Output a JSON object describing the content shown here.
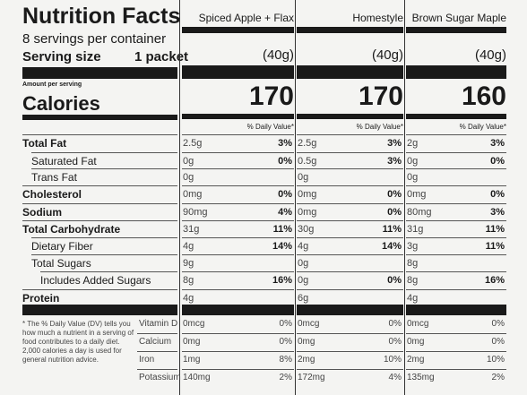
{
  "header": {
    "title": "Nutrition Facts",
    "servings": "8 servings per container",
    "serving_size_label": "Serving size",
    "serving_size": "1 packet",
    "amount_per_serving": "Amount per serving",
    "calories_label": "Calories",
    "dv_heading": "% Daily Value*"
  },
  "nutrients": [
    "Total Fat",
    "Saturated Fat",
    "Trans Fat",
    "Cholesterol",
    "Sodium",
    "Total Carbohydrate",
    "Dietary Fiber",
    "Total Sugars",
    "Includes Added Sugars",
    "Protein"
  ],
  "vitamins": [
    "Vitamin D",
    "Calcium",
    "Iron",
    "Potassium"
  ],
  "footnote": "* The % Daily Value (DV) tells you how much a nutrient in a serving of food contributes to a daily diet. 2,000 calories a day is used for general nutrition advice.",
  "products": [
    {
      "name": "Spiced Apple + Flax",
      "serving": "(40g)",
      "calories": 170,
      "nutrients": [
        {
          "amount": "2.5g",
          "dv": "3%"
        },
        {
          "amount": "0g",
          "dv": "0%"
        },
        {
          "amount": "0g"
        },
        {
          "amount": "0mg",
          "dv": "0%"
        },
        {
          "amount": "90mg",
          "dv": "4%"
        },
        {
          "amount": "31g",
          "dv": "11%"
        },
        {
          "amount": "4g",
          "dv": "14%"
        },
        {
          "amount": "9g"
        },
        {
          "amount": "8g",
          "dv": "16%"
        },
        {
          "amount": "4g"
        }
      ],
      "vitamins": [
        {
          "amount": "0mcg",
          "dv": "0%"
        },
        {
          "amount": "0mg",
          "dv": "0%"
        },
        {
          "amount": "1mg",
          "dv": "8%"
        },
        {
          "amount": "140mg",
          "dv": "2%"
        }
      ]
    },
    {
      "name": "Homestyle",
      "serving": "(40g)",
      "calories": 170,
      "nutrients": [
        {
          "amount": "2.5g",
          "dv": "3%"
        },
        {
          "amount": "0.5g",
          "dv": "3%"
        },
        {
          "amount": "0g"
        },
        {
          "amount": "0mg",
          "dv": "0%"
        },
        {
          "amount": "0mg",
          "dv": "0%"
        },
        {
          "amount": "30g",
          "dv": "11%"
        },
        {
          "amount": "4g",
          "dv": "14%"
        },
        {
          "amount": "0g"
        },
        {
          "amount": "0g",
          "dv": "0%"
        },
        {
          "amount": "6g"
        }
      ],
      "vitamins": [
        {
          "amount": "0mcg",
          "dv": "0%"
        },
        {
          "amount": "0mg",
          "dv": "0%"
        },
        {
          "amount": "2mg",
          "dv": "10%"
        },
        {
          "amount": "172mg",
          "dv": "4%"
        }
      ]
    },
    {
      "name": "Brown Sugar Maple",
      "serving": "(40g)",
      "calories": 160,
      "nutrients": [
        {
          "amount": "2g",
          "dv": "3%"
        },
        {
          "amount": "0g",
          "dv": "0%"
        },
        {
          "amount": "0g"
        },
        {
          "amount": "0mg",
          "dv": "0%"
        },
        {
          "amount": "80mg",
          "dv": "3%"
        },
        {
          "amount": "31g",
          "dv": "11%"
        },
        {
          "amount": "3g",
          "dv": "11%"
        },
        {
          "amount": "8g"
        },
        {
          "amount": "8g",
          "dv": "16%"
        },
        {
          "amount": "4g"
        }
      ],
      "vitamins": [
        {
          "amount": "0mcg",
          "dv": "0%"
        },
        {
          "amount": "0mg",
          "dv": "0%"
        },
        {
          "amount": "2mg",
          "dv": "10%"
        },
        {
          "amount": "135mg",
          "dv": "2%"
        }
      ]
    }
  ]
}
